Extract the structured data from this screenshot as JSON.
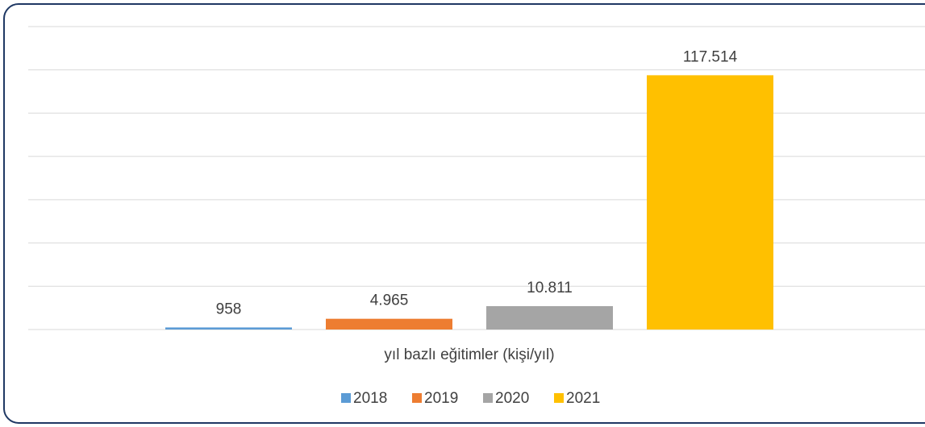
{
  "chart_data": {
    "type": "bar",
    "categories": [
      "yıl bazlı eğitimler (kişi/yıl)"
    ],
    "series": [
      {
        "name": "2018",
        "color": "#5b9bd5",
        "values": [
          958
        ],
        "value_labels": [
          "958"
        ]
      },
      {
        "name": "2019",
        "color": "#ed7d31",
        "values": [
          4965
        ],
        "value_labels": [
          "4.965"
        ]
      },
      {
        "name": "2020",
        "color": "#a5a5a5",
        "values": [
          10811
        ],
        "value_labels": [
          "10.811"
        ]
      },
      {
        "name": "2021",
        "color": "#ffc000",
        "values": [
          117514
        ],
        "value_labels": [
          "117.514"
        ]
      }
    ],
    "ylim": [
      0,
      140000
    ],
    "yticks": [
      0,
      20000,
      40000,
      60000,
      80000,
      100000,
      120000,
      140000
    ],
    "grid": true,
    "legend": "bottom"
  }
}
